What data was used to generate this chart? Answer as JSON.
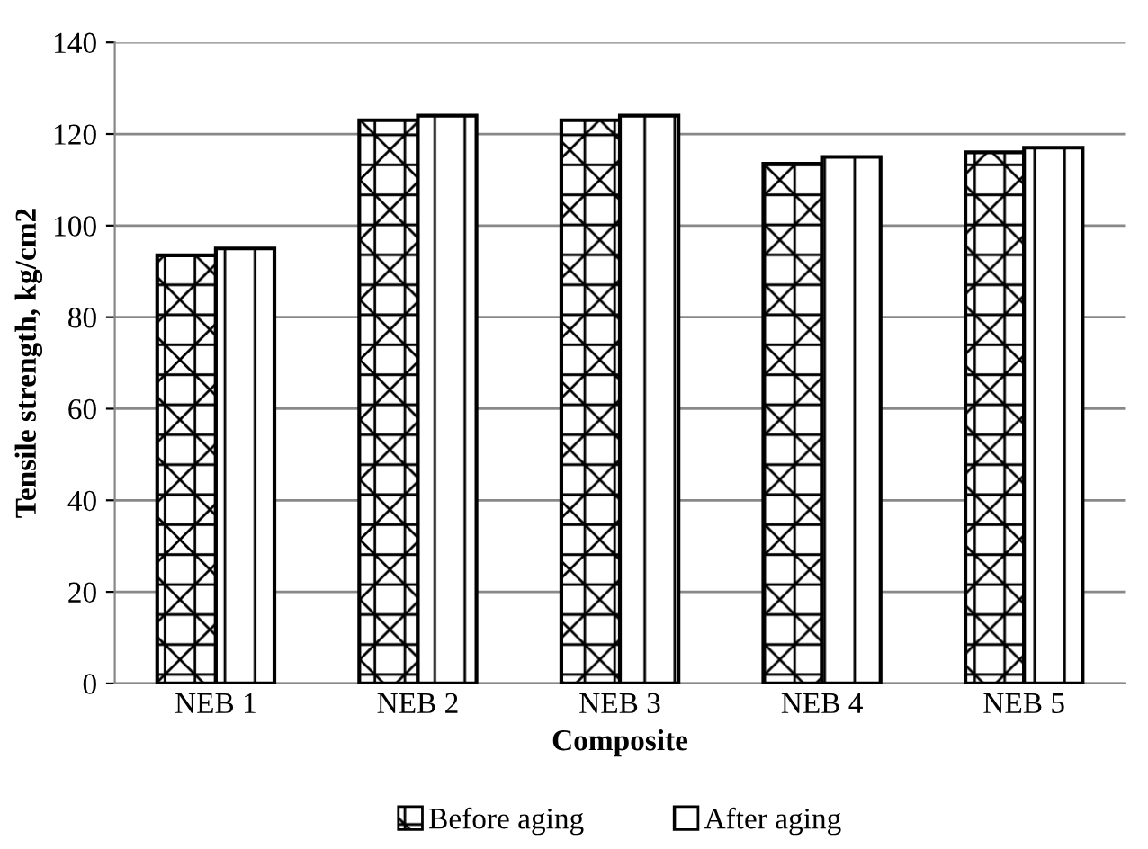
{
  "chart_data": {
    "type": "bar",
    "xlabel": "Composite",
    "ylabel": "Tensile strength, kg/cm2",
    "categories": [
      "NEB 1",
      "NEB 2",
      "NEB 3",
      "NEB 4",
      "NEB 5"
    ],
    "series": [
      {
        "name": "Before aging",
        "color": "#000000",
        "values": [
          93.5,
          123,
          123,
          113.5,
          116
        ]
      },
      {
        "name": "After aging",
        "color": "#000000",
        "values": [
          95,
          124,
          124,
          115,
          117
        ]
      }
    ],
    "ylim": [
      0,
      140
    ],
    "yticks": [
      0,
      20,
      40,
      60,
      80,
      100,
      120,
      140
    ],
    "grid": "y",
    "legend": "bottom"
  }
}
